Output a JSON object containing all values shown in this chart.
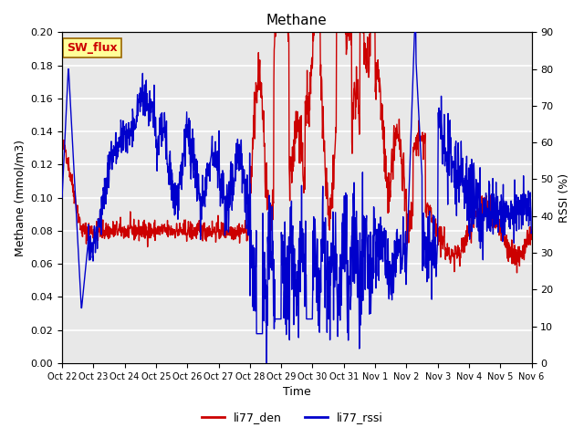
{
  "title": "Methane",
  "ylabel_left": "Methane (mmol/m3)",
  "ylabel_right": "RSSI (%)",
  "xlabel": "Time",
  "ylim_left": [
    0.0,
    0.2
  ],
  "ylim_right": [
    0,
    90
  ],
  "yticks_left": [
    0.0,
    0.02,
    0.04,
    0.06,
    0.08,
    0.1,
    0.12,
    0.14,
    0.16,
    0.18,
    0.2
  ],
  "yticks_right": [
    0,
    10,
    20,
    30,
    40,
    50,
    60,
    70,
    80,
    90
  ],
  "xtick_labels": [
    "Oct 22",
    "Oct 23",
    "Oct 24",
    "Oct 25",
    "Oct 26",
    "Oct 27",
    "Oct 28",
    "Oct 29",
    "Oct 30",
    "Oct 31",
    "Nov 1",
    "Nov 2",
    "Nov 3",
    "Nov 4",
    "Nov 5",
    "Nov 6"
  ],
  "color_den": "#cc0000",
  "color_rssi": "#0000cc",
  "legend_label_den": "li77_den",
  "legend_label_rssi": "li77_rssi",
  "watermark_text": "SW_flux",
  "watermark_color": "#cc0000",
  "watermark_bg": "#ffff99",
  "background_color": "#e8e8e8",
  "grid_color": "#ffffff",
  "linewidth": 1.0,
  "n_points": 1440
}
